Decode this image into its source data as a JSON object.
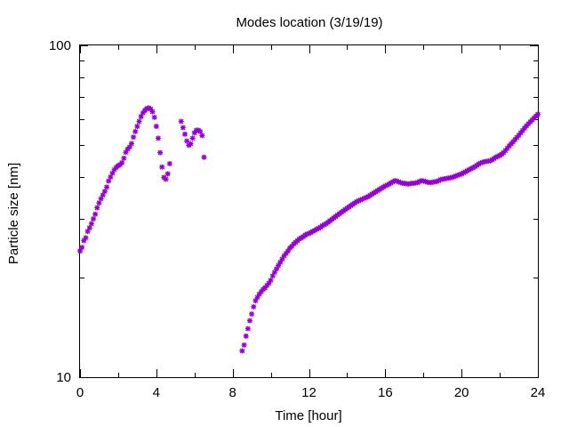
{
  "chart_data": {
    "type": "scatter",
    "title": "Modes location (3/19/19)",
    "xlabel": "Time [hour]",
    "ylabel": "Particle size [nm]",
    "xlim": [
      0,
      24
    ],
    "ylim": [
      10,
      100
    ],
    "yscale": "log",
    "grid": false,
    "legend": "none",
    "marker_color": "#9400d3",
    "x_ticks": [
      0,
      4,
      8,
      12,
      16,
      20,
      24
    ],
    "x_tick_labels": [
      "0",
      "4",
      "8",
      "12",
      "16",
      "20",
      "24"
    ],
    "y_ticks": [
      10,
      100
    ],
    "y_tick_labels": [
      "10",
      "100"
    ],
    "series": [
      {
        "points": [
          [
            0.0,
            24.0
          ],
          [
            0.1,
            24.6
          ],
          [
            0.2,
            25.8
          ],
          [
            0.3,
            26.3
          ],
          [
            0.4,
            27.5
          ],
          [
            0.5,
            28.2
          ],
          [
            0.6,
            29.0
          ],
          [
            0.7,
            30.0
          ],
          [
            0.8,
            31.0
          ],
          [
            0.9,
            32.4
          ],
          [
            1.0,
            33.5
          ],
          [
            1.1,
            34.5
          ],
          [
            1.2,
            35.4
          ],
          [
            1.3,
            36.3
          ],
          [
            1.4,
            37.4
          ],
          [
            1.5,
            39.0
          ],
          [
            1.6,
            40.1
          ],
          [
            1.7,
            41.2
          ],
          [
            1.8,
            42.2
          ],
          [
            1.9,
            42.9
          ],
          [
            2.0,
            43.4
          ],
          [
            2.1,
            43.7
          ],
          [
            2.2,
            44.3
          ],
          [
            2.3,
            45.7
          ],
          [
            2.4,
            47.6
          ],
          [
            2.5,
            48.7
          ],
          [
            2.6,
            49.4
          ],
          [
            2.7,
            50.6
          ],
          [
            2.8,
            52.9
          ],
          [
            2.9,
            55.0
          ],
          [
            3.0,
            57.0
          ],
          [
            3.1,
            59.0
          ],
          [
            3.2,
            61.0
          ],
          [
            3.3,
            62.6
          ],
          [
            3.4,
            63.7
          ],
          [
            3.5,
            64.5
          ],
          [
            3.6,
            64.8
          ],
          [
            3.7,
            64.3
          ],
          [
            3.8,
            63.1
          ],
          [
            3.9,
            60.7
          ],
          [
            4.0,
            57.0
          ],
          [
            4.1,
            52.5
          ],
          [
            4.2,
            47.5
          ],
          [
            4.3,
            43.0
          ],
          [
            4.4,
            40.0
          ],
          [
            4.5,
            39.5
          ],
          [
            4.6,
            41.0
          ],
          [
            4.7,
            44.0
          ],
          [
            5.3,
            59.0
          ],
          [
            5.4,
            56.5
          ],
          [
            5.5,
            54.0
          ],
          [
            5.6,
            51.5
          ],
          [
            5.7,
            50.0
          ],
          [
            5.8,
            50.5
          ],
          [
            5.9,
            52.5
          ],
          [
            6.0,
            54.5
          ],
          [
            6.1,
            55.5
          ],
          [
            6.2,
            55.5
          ],
          [
            6.3,
            55.0
          ],
          [
            6.4,
            53.5
          ],
          [
            6.5,
            46.0
          ],
          [
            8.5,
            12.0
          ],
          [
            8.6,
            12.5
          ],
          [
            8.7,
            13.3
          ],
          [
            8.8,
            14.0
          ],
          [
            8.9,
            14.8
          ],
          [
            9.0,
            15.5
          ],
          [
            9.1,
            16.3
          ],
          [
            9.2,
            17.0
          ],
          [
            9.3,
            17.4
          ],
          [
            9.4,
            17.8
          ],
          [
            9.5,
            18.1
          ],
          [
            9.6,
            18.4
          ],
          [
            9.7,
            18.6
          ],
          [
            9.8,
            18.9
          ],
          [
            9.9,
            19.2
          ],
          [
            10.0,
            19.6
          ],
          [
            10.1,
            20.2
          ],
          [
            10.2,
            20.7
          ],
          [
            10.3,
            21.2
          ],
          [
            10.4,
            21.7
          ],
          [
            10.5,
            22.2
          ],
          [
            10.6,
            22.7
          ],
          [
            10.7,
            23.2
          ],
          [
            10.8,
            23.6
          ],
          [
            10.9,
            24.0
          ],
          [
            11.0,
            24.5
          ],
          [
            11.1,
            24.8
          ],
          [
            11.2,
            25.2
          ],
          [
            11.3,
            25.5
          ],
          [
            11.4,
            25.8
          ],
          [
            11.5,
            26.1
          ],
          [
            11.6,
            26.3
          ],
          [
            11.7,
            26.5
          ],
          [
            11.8,
            26.8
          ],
          [
            11.9,
            27.0
          ],
          [
            12.0,
            27.1
          ],
          [
            12.1,
            27.3
          ],
          [
            12.2,
            27.5
          ],
          [
            12.3,
            27.7
          ],
          [
            12.4,
            27.9
          ],
          [
            12.5,
            28.1
          ],
          [
            12.6,
            28.3
          ],
          [
            12.7,
            28.6
          ],
          [
            12.8,
            28.8
          ],
          [
            12.9,
            29.0
          ],
          [
            13.0,
            29.3
          ],
          [
            13.1,
            29.6
          ],
          [
            13.2,
            29.9
          ],
          [
            13.3,
            30.2
          ],
          [
            13.4,
            30.5
          ],
          [
            13.5,
            30.8
          ],
          [
            13.6,
            31.1
          ],
          [
            13.7,
            31.4
          ],
          [
            13.8,
            31.7
          ],
          [
            13.9,
            32.0
          ],
          [
            14.0,
            32.3
          ],
          [
            14.1,
            32.6
          ],
          [
            14.2,
            32.9
          ],
          [
            14.3,
            33.2
          ],
          [
            14.4,
            33.5
          ],
          [
            14.5,
            33.8
          ],
          [
            14.6,
            34.0
          ],
          [
            14.7,
            34.2
          ],
          [
            14.8,
            34.4
          ],
          [
            14.9,
            34.6
          ],
          [
            15.0,
            34.8
          ],
          [
            15.1,
            35.0
          ],
          [
            15.2,
            35.3
          ],
          [
            15.3,
            35.6
          ],
          [
            15.4,
            35.9
          ],
          [
            15.5,
            36.2
          ],
          [
            15.6,
            36.5
          ],
          [
            15.7,
            36.8
          ],
          [
            15.8,
            37.1
          ],
          [
            15.9,
            37.4
          ],
          [
            16.0,
            37.7
          ],
          [
            16.1,
            37.9
          ],
          [
            16.2,
            38.2
          ],
          [
            16.3,
            38.5
          ],
          [
            16.4,
            38.8
          ],
          [
            16.5,
            39.1
          ],
          [
            16.6,
            39.0
          ],
          [
            16.7,
            38.8
          ],
          [
            16.8,
            38.6
          ],
          [
            16.9,
            38.4
          ],
          [
            17.0,
            38.4
          ],
          [
            17.1,
            38.3
          ],
          [
            17.2,
            38.2
          ],
          [
            17.3,
            38.3
          ],
          [
            17.4,
            38.4
          ],
          [
            17.5,
            38.4
          ],
          [
            17.6,
            38.5
          ],
          [
            17.7,
            38.6
          ],
          [
            17.8,
            38.9
          ],
          [
            17.9,
            39.1
          ],
          [
            18.0,
            39.0
          ],
          [
            18.1,
            38.9
          ],
          [
            18.2,
            38.7
          ],
          [
            18.3,
            38.6
          ],
          [
            18.4,
            38.6
          ],
          [
            18.5,
            38.7
          ],
          [
            18.6,
            38.8
          ],
          [
            18.7,
            38.9
          ],
          [
            18.8,
            39.1
          ],
          [
            18.9,
            39.4
          ],
          [
            19.0,
            39.5
          ],
          [
            19.1,
            39.6
          ],
          [
            19.2,
            39.7
          ],
          [
            19.3,
            39.8
          ],
          [
            19.4,
            39.9
          ],
          [
            19.5,
            40.0
          ],
          [
            19.6,
            40.2
          ],
          [
            19.7,
            40.4
          ],
          [
            19.8,
            40.6
          ],
          [
            19.9,
            40.8
          ],
          [
            20.0,
            41.0
          ],
          [
            20.1,
            41.3
          ],
          [
            20.2,
            41.6
          ],
          [
            20.3,
            41.9
          ],
          [
            20.4,
            42.2
          ],
          [
            20.5,
            42.5
          ],
          [
            20.6,
            42.8
          ],
          [
            20.7,
            43.1
          ],
          [
            20.8,
            43.5
          ],
          [
            20.9,
            43.9
          ],
          [
            21.0,
            44.2
          ],
          [
            21.1,
            44.4
          ],
          [
            21.2,
            44.6
          ],
          [
            21.3,
            44.7
          ],
          [
            21.4,
            44.8
          ],
          [
            21.5,
            44.9
          ],
          [
            21.6,
            45.2
          ],
          [
            21.7,
            45.6
          ],
          [
            21.8,
            46.0
          ],
          [
            21.9,
            46.3
          ],
          [
            22.0,
            46.6
          ],
          [
            22.1,
            47.0
          ],
          [
            22.2,
            47.5
          ],
          [
            22.3,
            48.2
          ],
          [
            22.4,
            49.0
          ],
          [
            22.5,
            49.8
          ],
          [
            22.6,
            50.5
          ],
          [
            22.7,
            51.2
          ],
          [
            22.8,
            52.0
          ],
          [
            22.9,
            52.8
          ],
          [
            23.0,
            53.6
          ],
          [
            23.1,
            54.5
          ],
          [
            23.2,
            55.4
          ],
          [
            23.3,
            56.3
          ],
          [
            23.4,
            57.2
          ],
          [
            23.5,
            58.0
          ],
          [
            23.6,
            58.8
          ],
          [
            23.7,
            59.6
          ],
          [
            23.8,
            60.4
          ],
          [
            23.9,
            61.2
          ],
          [
            24.0,
            62.0
          ]
        ]
      }
    ]
  }
}
